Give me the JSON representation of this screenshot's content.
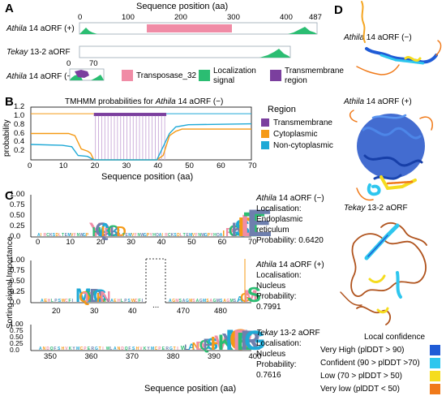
{
  "panels": {
    "A": "A",
    "B": "B",
    "C": "C",
    "D": "D"
  },
  "panelA": {
    "axis_title": "Sequence position (aa)",
    "ticks": [
      "0",
      "100",
      "200",
      "300",
      "400",
      "487"
    ],
    "tracks": [
      {
        "name": "Athila",
        "rest": " 14 aORF (+)"
      },
      {
        "name": "Tekay",
        "rest": " 13-2 aORF"
      },
      {
        "name": "Athila",
        "rest": " 14 aORF (−)"
      }
    ],
    "small_ticks": [
      "0",
      "70"
    ],
    "legend": [
      {
        "label": "Transposase_32",
        "color": "#f08ca6"
      },
      {
        "label": "Localization signal",
        "line1": "Localization",
        "line2": "signal",
        "color": "#2bbd72"
      },
      {
        "label": "Transmembrane region",
        "line1": "Transmembrane",
        "line2": "region",
        "color": "#7b3f9e"
      }
    ]
  },
  "chart_data": [
    {
      "type": "line",
      "title_prefix": "TMHMM probabilities for ",
      "title_it": "Athila",
      "title_suffix": " 14 aORF (−)",
      "xlabel": "Sequence position (aa)",
      "ylabel": "probability",
      "xlim": [
        0,
        70
      ],
      "ylim": [
        0,
        1.2
      ],
      "xticks": [
        "0",
        "10",
        "20",
        "30",
        "40",
        "50",
        "60",
        "70"
      ],
      "yticks": [
        "0.2",
        "0.4",
        "0.6",
        "0.8",
        "1.0",
        "1.2"
      ],
      "legend_title": "Region",
      "series": [
        {
          "name": "Transmembrane",
          "color": "#7b3f9e"
        },
        {
          "name": "Cytoplasmic",
          "color": "#f59a16"
        },
        {
          "name": "Non-cytoplasmic",
          "color": "#1fa9d6"
        }
      ],
      "tm_region": [
        20,
        43
      ]
    },
    {
      "type": "bar",
      "ylabel": "Sorting signal Importance",
      "xlabel": "Sequence position (aa)",
      "rows": [
        {
          "yticks": [
            "1.00",
            "0.75",
            "0.50",
            "0.25",
            "0.0"
          ],
          "xticks": [
            "0",
            "10",
            "20",
            "30",
            "40",
            "50",
            "60",
            "70"
          ]
        },
        {
          "yticks": [
            "1.00",
            "0.75",
            "0.50",
            "0.25",
            "0.0"
          ],
          "xticks": [
            "20",
            "30",
            "40",
            "470",
            "480"
          ],
          "gap": "..."
        },
        {
          "yticks": [
            "1.00",
            "0.75",
            "0.50",
            "0.25",
            "0.0"
          ],
          "xticks": [
            "350",
            "360",
            "370",
            "380",
            "390",
            "400"
          ]
        }
      ]
    }
  ],
  "panelC": {
    "annotations": [
      {
        "name": "Athila",
        "rest": " 14 aORF (−)",
        "lines": [
          "Localisation:",
          "Endoplasmic",
          "reticulum",
          "Probability: 0.6420"
        ]
      },
      {
        "name": "Athila",
        "rest": " 14 aORF (+)",
        "lines": [
          "Localisation:",
          "Nucleus",
          "Probability:",
          "0.7991"
        ]
      },
      {
        "name": "Tekay",
        "rest": " 13-2 aORF",
        "lines": [
          "Localisation:",
          "Nucleus",
          "Probability:",
          "0.7616"
        ]
      }
    ]
  },
  "panelD": {
    "labels": [
      {
        "name": "Athila",
        "rest": " 14 aORF (−)"
      },
      {
        "name": "Athila",
        "rest": " 14 aORF (+)"
      },
      {
        "name": "Tekay",
        "rest": " 13-2 aORF"
      }
    ],
    "conf_title": "Local confidence",
    "conf": [
      {
        "label": "Very High (plDDT > 90)",
        "color": "#1f5bd6"
      },
      {
        "label": "Confident (90 > plDDT >70)",
        "color": "#2ec6ee"
      },
      {
        "label": "Low (70 > plDDT > 50)",
        "color": "#f5dc1e"
      },
      {
        "label": "Very low (plDDT < 50)",
        "color": "#f07a1a"
      }
    ]
  }
}
